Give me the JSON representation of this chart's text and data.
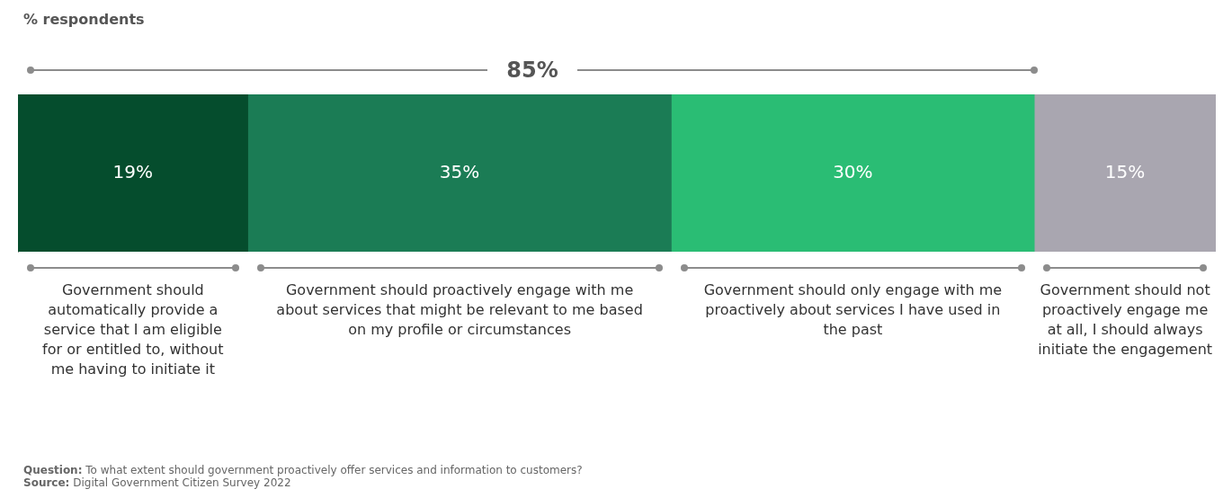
{
  "chart_data": {
    "type": "bar",
    "title": "% respondents",
    "orientation": "horizontal",
    "stacked": true,
    "categories": [
      null
    ],
    "series": [
      {
        "name": "Government should automatically provide a service that I am eligible for or entitled to, without me having to initiate it",
        "color": "#054d2d",
        "values": [
          19
        ],
        "value_labels": [
          "19%"
        ]
      },
      {
        "name": "Government should proactively engage with me about services that might be relevant to me based on my profile or circumstances",
        "color": "#1b7c55",
        "values": [
          35
        ],
        "value_labels": [
          "35%"
        ]
      },
      {
        "name": "Government should only engage with me proactively about services I have used in the past",
        "color": "#2abd74",
        "values": [
          30
        ],
        "value_labels": [
          "30%"
        ]
      },
      {
        "name": "Government should not proactively engage me at all, I should always initiate the engagement",
        "color": "#a9a6b0",
        "values": [
          15
        ],
        "value_labels": [
          "15%"
        ]
      }
    ],
    "tick_labels": false,
    "legend": false,
    "annotations": [
      "85%",
      "Question: To what extent should government proactively offer services and information to customers?",
      "Source: Digital Government Citizen Survey 2022"
    ]
  }
}
